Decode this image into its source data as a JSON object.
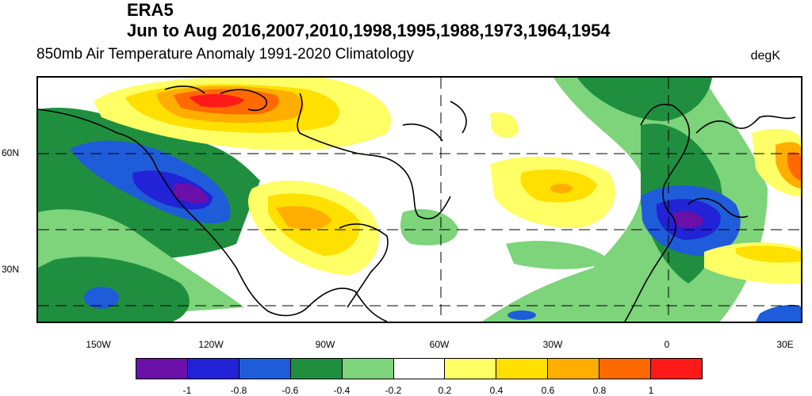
{
  "header": {
    "title": "ERA5",
    "subtitle_years": "Jun to Aug 2016,2007,2010,1998,1995,1988,1973,1964,1954",
    "description": "850mb Air Temperature Anomaly  1991-2020 Climatology",
    "units": "degK"
  },
  "map": {
    "lat_labels": [
      "60N",
      "30N"
    ],
    "lon_labels": [
      "150W",
      "120W",
      "90W",
      "60W",
      "30W",
      "0",
      "30E"
    ]
  },
  "colorbar": {
    "colors": [
      "#6a0fa8",
      "#2222d6",
      "#1e5cd9",
      "#1f8f3f",
      "#7dd47a",
      "#ffffff",
      "#ffff66",
      "#ffe000",
      "#ffae00",
      "#ff6a00",
      "#ff1a1a"
    ],
    "labels": [
      "-1",
      "-0.8",
      "-0.6",
      "-0.4",
      "-0.2",
      "0.2",
      "0.4",
      "0.6",
      "0.8",
      "1"
    ]
  }
}
